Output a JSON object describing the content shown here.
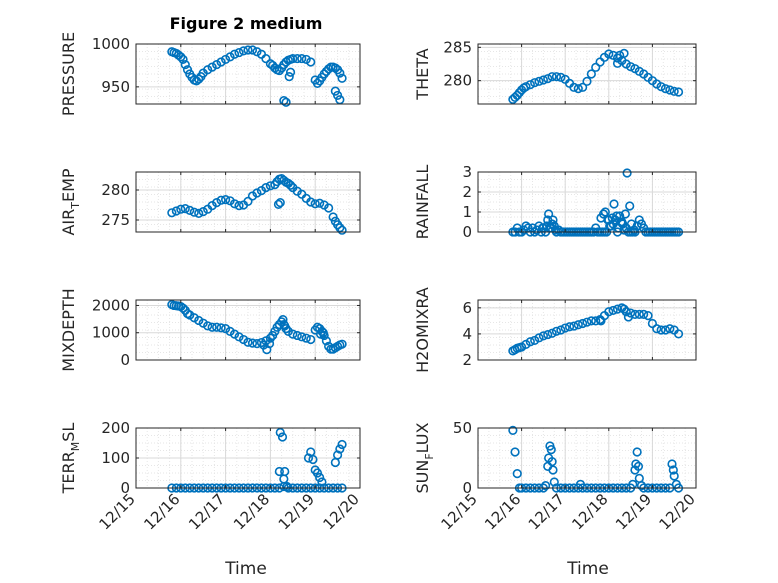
{
  "figure": {
    "title": "Figure 2 medium",
    "xlabel": "Time",
    "x_ticks": [
      "12/15",
      "12/16",
      "12/17",
      "12/18",
      "12/19",
      "12/20"
    ],
    "marker_color": "#0072BD",
    "grid_color": "#d9d9d9",
    "axes_color": "#262626"
  },
  "chart_data": [
    {
      "type": "scatter",
      "ylabel": "PRESSURE",
      "ylabel_sub": "",
      "xlim": [
        15,
        20
      ],
      "ylim": [
        930,
        1000
      ],
      "yticks": [
        950,
        1000
      ],
      "x": [
        15.8,
        15.85,
        15.9,
        15.95,
        16.0,
        16.05,
        16.1,
        16.15,
        16.2,
        16.25,
        16.3,
        16.35,
        16.4,
        16.45,
        16.5,
        16.6,
        16.7,
        16.8,
        16.9,
        17.0,
        17.1,
        17.2,
        17.3,
        17.4,
        17.5,
        17.6,
        17.7,
        17.8,
        17.9,
        18.0,
        18.05,
        18.1,
        18.15,
        18.2,
        18.25,
        18.3,
        18.35,
        18.4,
        18.45,
        18.5,
        18.6,
        18.7,
        18.8,
        18.9,
        19.0,
        19.05,
        19.1,
        19.15,
        19.2,
        19.25,
        19.3,
        19.35,
        19.4,
        19.45,
        19.5,
        19.55,
        19.6,
        18.3,
        18.35,
        18.42,
        18.45,
        19.45,
        19.5,
        19.55
      ],
      "y": [
        991,
        990,
        989,
        987,
        985,
        982,
        976,
        970,
        965,
        961,
        958,
        957,
        959,
        962,
        966,
        970,
        973,
        976,
        979,
        982,
        985,
        988,
        990,
        992,
        993,
        993,
        991,
        988,
        983,
        977,
        975,
        972,
        970,
        969,
        972,
        976,
        979,
        981,
        982,
        983,
        983,
        983,
        982,
        979,
        958,
        954,
        957,
        961,
        965,
        968,
        971,
        973,
        973,
        972,
        970,
        966,
        960,
        934,
        932,
        962,
        967,
        945,
        940,
        935
      ]
    },
    {
      "type": "scatter",
      "ylabel": "THETA",
      "ylabel_sub": "",
      "xlim": [
        15,
        20
      ],
      "ylim": [
        276.5,
        285.5
      ],
      "yticks": [
        280,
        285
      ],
      "x": [
        15.8,
        15.85,
        15.9,
        15.95,
        16.0,
        16.05,
        16.1,
        16.2,
        16.3,
        16.4,
        16.5,
        16.6,
        16.7,
        16.8,
        16.9,
        17.0,
        17.1,
        17.2,
        17.3,
        17.4,
        17.5,
        17.6,
        17.7,
        17.8,
        17.9,
        18.0,
        18.1,
        18.2,
        18.3,
        18.4,
        18.5,
        18.6,
        18.7,
        18.8,
        18.9,
        19.0,
        19.1,
        19.2,
        19.3,
        19.4,
        19.5,
        19.6,
        18.25,
        18.35,
        18.2
      ],
      "y": [
        277.2,
        277.5,
        277.8,
        278.2,
        278.6,
        278.9,
        279.1,
        279.4,
        279.7,
        279.9,
        280.1,
        280.3,
        280.6,
        280.6,
        280.5,
        280.2,
        279.6,
        279.0,
        278.8,
        279.0,
        279.9,
        281.0,
        282.0,
        282.8,
        283.5,
        284.0,
        283.8,
        283.4,
        283.0,
        282.5,
        282.1,
        281.8,
        281.4,
        281.0,
        280.5,
        280.0,
        279.5,
        279.1,
        278.8,
        278.6,
        278.4,
        278.3,
        283.8,
        284.1,
        282.6
      ]
    },
    {
      "type": "scatter",
      "ylabel": "AIR",
      "ylabel_sub": "T",
      "ylabel_suffix": "EMP",
      "xlim": [
        15,
        20
      ],
      "ylim": [
        273,
        283
      ],
      "yticks": [
        275,
        280
      ],
      "x": [
        15.8,
        15.9,
        16.0,
        16.1,
        16.2,
        16.3,
        16.4,
        16.5,
        16.6,
        16.7,
        16.8,
        16.9,
        17.0,
        17.1,
        17.2,
        17.3,
        17.4,
        17.5,
        17.6,
        17.7,
        17.8,
        17.9,
        18.0,
        18.1,
        18.15,
        18.2,
        18.25,
        18.3,
        18.35,
        18.4,
        18.45,
        18.5,
        18.6,
        18.7,
        18.8,
        18.9,
        19.0,
        19.1,
        19.2,
        19.3,
        19.4,
        19.45,
        19.5,
        19.55,
        19.6,
        18.18,
        18.22
      ],
      "y": [
        276.2,
        276.5,
        276.8,
        276.9,
        276.6,
        276.3,
        276.1,
        276.4,
        276.8,
        277.4,
        277.9,
        278.3,
        278.4,
        278.2,
        277.7,
        277.4,
        277.5,
        278.1,
        279.0,
        279.5,
        279.9,
        280.4,
        280.7,
        280.9,
        281.4,
        281.8,
        281.9,
        281.6,
        281.3,
        281.1,
        280.8,
        280.4,
        279.8,
        279.3,
        278.6,
        278.0,
        277.7,
        277.8,
        277.5,
        277.0,
        275.5,
        274.8,
        274.2,
        273.7,
        273.3,
        277.6,
        277.9
      ]
    },
    {
      "type": "scatter",
      "ylabel": "RAINFALL",
      "ylabel_sub": "",
      "xlim": [
        15,
        20
      ],
      "ylim": [
        0,
        3
      ],
      "yticks": [
        0,
        1,
        2,
        3
      ],
      "x": [
        15.8,
        15.85,
        15.9,
        15.95,
        16.0,
        16.05,
        16.1,
        16.15,
        16.2,
        16.25,
        16.3,
        16.35,
        16.4,
        16.45,
        16.5,
        16.55,
        16.6,
        16.65,
        16.7,
        16.75,
        16.8,
        16.85,
        16.9,
        16.95,
        17.0,
        17.05,
        17.1,
        17.15,
        17.2,
        17.25,
        17.3,
        17.35,
        17.4,
        17.45,
        17.5,
        17.55,
        17.6,
        17.65,
        17.7,
        17.75,
        17.8,
        17.85,
        17.9,
        17.95,
        18.0,
        18.05,
        18.1,
        18.15,
        18.2,
        18.25,
        18.3,
        18.35,
        18.4,
        18.45,
        18.5,
        18.55,
        18.6,
        18.65,
        18.7,
        18.75,
        18.8,
        18.85,
        18.9,
        18.95,
        19.0,
        19.05,
        19.1,
        19.15,
        19.2,
        19.25,
        19.3,
        19.35,
        19.4,
        19.45,
        19.5,
        19.55,
        19.6,
        17.82,
        17.88,
        17.92,
        17.98,
        18.02,
        18.08,
        18.12,
        18.18,
        18.22,
        18.28,
        18.32,
        18.38,
        18.42,
        18.48,
        18.52,
        18.58,
        16.62,
        16.68,
        16.72,
        16.78,
        16.58,
        16.48
      ],
      "y": [
        0,
        0,
        0.2,
        0,
        0,
        0.1,
        0.3,
        0.2,
        0,
        0.2,
        0,
        0.1,
        0.3,
        0,
        0.2,
        0,
        0.6,
        0.2,
        0.4,
        0.3,
        0,
        0.1,
        0,
        0,
        0,
        0,
        0,
        0,
        0,
        0,
        0,
        0,
        0,
        0,
        0,
        0,
        0,
        0,
        0.2,
        0,
        0,
        0,
        0,
        0,
        0.6,
        0.3,
        0.4,
        0.6,
        0,
        0.8,
        0.5,
        0.1,
        0.2,
        0,
        0,
        0,
        0,
        0.3,
        0.6,
        0.4,
        0.2,
        0,
        0,
        0,
        0,
        0,
        0,
        0,
        0,
        0,
        0,
        0,
        0,
        0,
        0,
        0,
        0,
        0.7,
        0.9,
        1.0,
        0.6,
        0.3,
        0.7,
        1.4,
        0.8,
        0.2,
        0.5,
        0.4,
        0.9,
        2.95,
        1.3,
        0.4,
        0.1,
        0.9,
        0.2,
        0.6,
        0.1,
        0.3,
        0.2
      ]
    },
    {
      "type": "scatter",
      "ylabel": "MIXDEPTH",
      "ylabel_sub": "",
      "xlim": [
        15,
        20
      ],
      "ylim": [
        0,
        2200
      ],
      "yticks": [
        0,
        1000,
        2000
      ],
      "x": [
        15.8,
        15.85,
        15.9,
        15.95,
        16.0,
        16.05,
        16.1,
        16.15,
        16.2,
        16.3,
        16.4,
        16.5,
        16.6,
        16.7,
        16.8,
        16.9,
        17.0,
        17.1,
        17.2,
        17.3,
        17.4,
        17.5,
        17.6,
        17.7,
        17.8,
        17.9,
        18.0,
        18.05,
        18.1,
        18.15,
        18.2,
        18.25,
        18.3,
        18.35,
        18.4,
        18.5,
        18.6,
        18.7,
        18.8,
        18.9,
        19.0,
        19.05,
        19.1,
        19.15,
        19.2,
        19.25,
        19.3,
        19.35,
        19.4,
        19.45,
        19.5,
        19.55,
        19.6,
        17.85,
        17.92,
        17.98,
        18.28,
        18.32,
        19.12,
        19.18
      ],
      "y": [
        2030,
        2000,
        1990,
        1980,
        1960,
        1900,
        1820,
        1700,
        1650,
        1550,
        1450,
        1350,
        1250,
        1200,
        1200,
        1180,
        1150,
        1050,
        950,
        850,
        750,
        650,
        620,
        600,
        640,
        700,
        800,
        900,
        1050,
        1200,
        1300,
        1400,
        1300,
        1150,
        1050,
        950,
        900,
        850,
        800,
        750,
        1100,
        1200,
        1150,
        1050,
        900,
        700,
        500,
        400,
        400,
        450,
        500,
        550,
        580,
        550,
        380,
        600,
        1480,
        1250,
        950,
        1000
      ]
    },
    {
      "type": "scatter",
      "ylabel": "H2OMIXRA",
      "ylabel_sub": "",
      "xlim": [
        15,
        20
      ],
      "ylim": [
        2,
        6.6
      ],
      "yticks": [
        2,
        4,
        6
      ],
      "x": [
        15.8,
        15.85,
        15.9,
        15.95,
        16.0,
        16.1,
        16.2,
        16.3,
        16.4,
        16.5,
        16.6,
        16.7,
        16.8,
        16.9,
        17.0,
        17.1,
        17.2,
        17.3,
        17.4,
        17.5,
        17.6,
        17.7,
        17.8,
        17.9,
        18.0,
        18.1,
        18.2,
        18.3,
        18.35,
        18.4,
        18.5,
        18.6,
        18.7,
        18.8,
        18.9,
        19.0,
        19.1,
        19.2,
        19.3,
        19.4,
        19.5,
        19.6,
        18.45,
        17.82
      ],
      "y": [
        2.7,
        2.8,
        2.9,
        2.95,
        3.0,
        3.2,
        3.4,
        3.5,
        3.7,
        3.85,
        3.95,
        4.05,
        4.2,
        4.3,
        4.45,
        4.55,
        4.6,
        4.7,
        4.8,
        4.9,
        5.0,
        5.0,
        5.1,
        5.4,
        5.7,
        5.8,
        5.9,
        6.0,
        5.9,
        5.7,
        5.6,
        5.5,
        5.5,
        5.5,
        5.4,
        4.8,
        4.4,
        4.3,
        4.3,
        4.4,
        4.3,
        4.0,
        5.3,
        5.0
      ]
    },
    {
      "type": "scatter",
      "ylabel": "TERR",
      "ylabel_sub": "M",
      "ylabel_suffix": "SL",
      "xlim": [
        15,
        20
      ],
      "ylim": [
        0,
        200
      ],
      "yticks": [
        0,
        100,
        200
      ],
      "x": [
        15.8,
        15.9,
        16.0,
        16.1,
        16.2,
        16.3,
        16.4,
        16.5,
        16.6,
        16.7,
        16.8,
        16.9,
        17.0,
        17.1,
        17.2,
        17.3,
        17.4,
        17.5,
        17.6,
        17.7,
        17.8,
        17.9,
        18.0,
        18.1,
        18.2,
        18.3,
        18.4,
        18.5,
        18.6,
        18.7,
        18.8,
        18.9,
        19.0,
        19.1,
        19.2,
        19.3,
        19.4,
        19.5,
        19.6,
        18.22,
        18.27,
        18.32,
        18.2,
        18.3,
        18.37,
        18.85,
        18.9,
        18.95,
        19.0,
        19.05,
        19.1,
        19.15,
        19.45,
        19.5,
        19.55,
        19.6
      ],
      "y": [
        0,
        0,
        0,
        0,
        0,
        0,
        0,
        0,
        0,
        0,
        0,
        0,
        0,
        0,
        0,
        0,
        0,
        0,
        0,
        0,
        0,
        0,
        0,
        0,
        0,
        5,
        0,
        0,
        0,
        0,
        0,
        0,
        0,
        0,
        0,
        0,
        0,
        0,
        0,
        185,
        170,
        55,
        55,
        30,
        5,
        100,
        120,
        95,
        60,
        50,
        35,
        20,
        85,
        110,
        130,
        145
      ]
    },
    {
      "type": "scatter",
      "ylabel": "SUN",
      "ylabel_sub": "F",
      "ylabel_suffix": "LUX",
      "xlim": [
        15,
        20
      ],
      "ylim": [
        0,
        50
      ],
      "yticks": [
        0,
        50
      ],
      "x": [
        15.8,
        15.85,
        15.9,
        15.95,
        16.0,
        16.1,
        16.2,
        16.3,
        16.4,
        16.5,
        16.55,
        16.6,
        16.62,
        16.65,
        16.68,
        16.7,
        16.72,
        16.75,
        16.8,
        16.9,
        17.0,
        17.1,
        17.2,
        17.3,
        17.35,
        17.4,
        17.5,
        17.6,
        17.7,
        17.8,
        17.9,
        18.0,
        18.1,
        18.2,
        18.3,
        18.4,
        18.5,
        18.55,
        18.6,
        18.62,
        18.65,
        18.68,
        18.7,
        18.75,
        18.8,
        18.9,
        19.0,
        19.1,
        19.2,
        19.3,
        19.4,
        19.45,
        19.48,
        19.5,
        19.55,
        19.6
      ],
      "y": [
        48,
        30,
        12,
        0,
        0,
        0,
        0,
        0,
        0,
        0,
        2,
        18,
        25,
        35,
        32,
        22,
        15,
        5,
        0,
        0,
        0,
        0,
        0,
        0,
        3,
        0,
        0,
        0,
        0,
        0,
        0,
        0,
        0,
        0,
        0,
        0,
        0,
        3,
        15,
        20,
        30,
        18,
        8,
        2,
        0,
        0,
        0,
        0,
        0,
        0,
        0,
        20,
        15,
        10,
        3,
        0
      ]
    }
  ]
}
